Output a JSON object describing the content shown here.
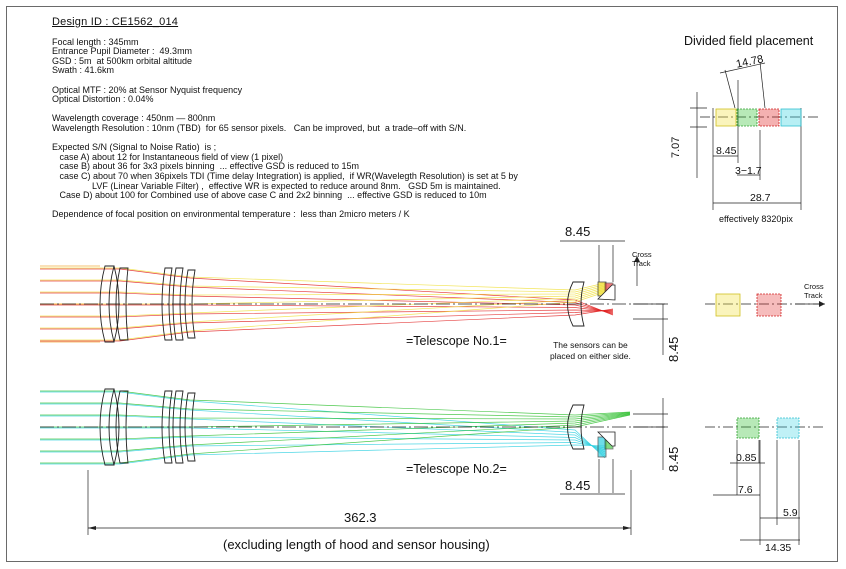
{
  "design_id": "Design ID : CE1562_014",
  "spec_lines": [
    "Focal length : 345mm",
    "Entrance Pupil Diameter :  49.3mm",
    "GSD : 5m  at 500km orbital altitude",
    "Swath : 41.6km",
    "",
    "Optical MTF : 20% at Sensor Nyquist frequency",
    "Optical Distortion : 0.04%",
    "",
    "Wavelength coverage : 450nm — 800nm",
    "Wavelength Resolution : 10nm (TBD)  for 65 sensor pixels.   Can be improved, but  a trade–off with S/N.",
    "",
    "Expected S/N (Signal to Noise Ratio)  is ;",
    "   case A) about 12 for Instantaneous field of view (1 pixel)",
    "   case B) about 36 for 3x3 pixels binning  ... effective GSD is reduced to 15m",
    "   case C) about 70 when 36pixels TDI (Time delay Integration) is applied,  if WR(Wavelegth Resolution) is set at 5 by",
    "                LVF (Linear Variable Filter) ,  effective WR is expected to reduce around 8nm.   GSD 5m is maintained.",
    "   Case D) about 100 for Combined use of above case C and 2x2 binning  ... effective GSD is reduced to 10m",
    "",
    "Dependence of focal position on environmental temperature :  less than 2micro meters / K"
  ],
  "divided_field": {
    "title": "Divided field placement",
    "dim_top": "14.78",
    "dim_left_vertical": "7.07",
    "dim_845": "8.45",
    "dim_3_17": "3−1.7",
    "dim_287": "28.7",
    "effective_pixels": "effectively 8320pix"
  },
  "telescope1": {
    "label": "=Telescope No.1=",
    "dim_top": "8.45",
    "dim_right": "8.45",
    "cross_track": "Cross\nTrack",
    "note": "The sensors can be\nplaced on either side."
  },
  "telescope2": {
    "label": "=Telescope No.2=",
    "dim_bottom": "8.45",
    "dim_right": "8.45"
  },
  "right_panel": {
    "cross_track": "Cross\nTrack",
    "dim_085": "0.85",
    "dim_76": "7.6",
    "dim_59": "5.9",
    "dim_1435": "14.35"
  },
  "overall_length": "362.3",
  "footnote": "(excluding length of hood and sensor housing)",
  "colors": {
    "yellow": "#f0e040",
    "red": "#e02020",
    "orange": "#f0a020",
    "green": "#30c030",
    "cyan": "#30d0e0",
    "line": "#222222"
  }
}
